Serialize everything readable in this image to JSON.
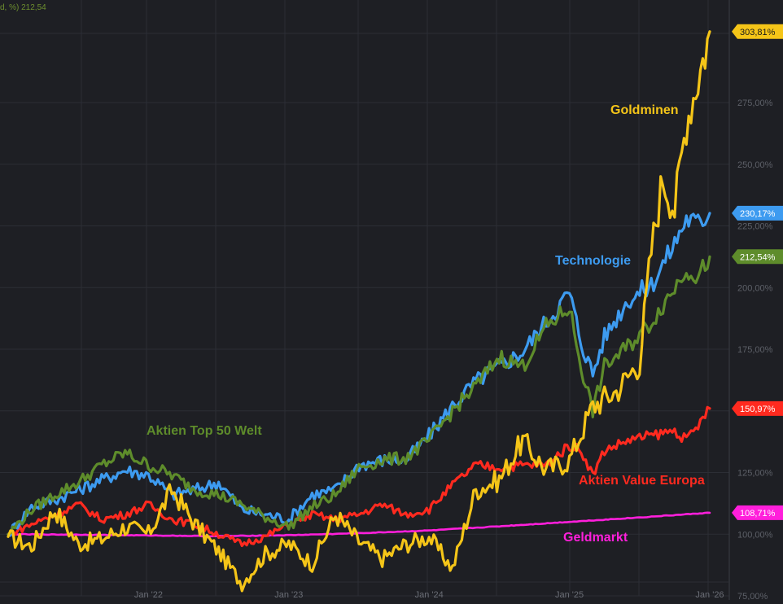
{
  "legend_snippet": "d, %)  212,54",
  "chart_data": {
    "type": "line",
    "x_ticks": [
      "Jan '22",
      "Jan '23",
      "Jan '24",
      "Jan '25",
      "Jan '26"
    ],
    "y_ticks": [
      "75,00%",
      "100,00%",
      "125,00%",
      "150,00%",
      "175,00%",
      "200,00%",
      "225,00%",
      "250,00%",
      "275,00%"
    ],
    "ylim": [
      75,
      310
    ],
    "xlim": [
      "2021-01",
      "2026-01"
    ],
    "grid": true,
    "series": [
      {
        "name": "Goldminen",
        "color": "#f5c518",
        "last_label": "303,81%",
        "points": [
          [
            "2021-01",
            99
          ],
          [
            "2021-03",
            95
          ],
          [
            "2021-05",
            110
          ],
          [
            "2021-07",
            96
          ],
          [
            "2021-09",
            98
          ],
          [
            "2021-11",
            103
          ],
          [
            "2022-01",
            100
          ],
          [
            "2022-03",
            118
          ],
          [
            "2022-05",
            104
          ],
          [
            "2022-07",
            93
          ],
          [
            "2022-09",
            80
          ],
          [
            "2022-11",
            92
          ],
          [
            "2023-01",
            96
          ],
          [
            "2023-03",
            88
          ],
          [
            "2023-05",
            108
          ],
          [
            "2023-07",
            97
          ],
          [
            "2023-09",
            90
          ],
          [
            "2023-11",
            96
          ],
          [
            "2024-01",
            99
          ],
          [
            "2024-03",
            86
          ],
          [
            "2024-05",
            118
          ],
          [
            "2024-07",
            122
          ],
          [
            "2024-09",
            138
          ],
          [
            "2024-11",
            126
          ],
          [
            "2025-01",
            130
          ],
          [
            "2025-03",
            152
          ],
          [
            "2025-05",
            158
          ],
          [
            "2025-07",
            170
          ],
          [
            "2025-08",
            215
          ],
          [
            "2025-09",
            245
          ],
          [
            "2025-10",
            232
          ],
          [
            "2025-11",
            268
          ],
          [
            "2025-12",
            285
          ],
          [
            "2026-01",
            303.81
          ]
        ]
      },
      {
        "name": "Technologie",
        "color": "#3d9bf0",
        "last_label": "230,17%",
        "points": [
          [
            "2021-01",
            100
          ],
          [
            "2021-03",
            111
          ],
          [
            "2021-05",
            114
          ],
          [
            "2021-07",
            118
          ],
          [
            "2021-09",
            122
          ],
          [
            "2021-11",
            126
          ],
          [
            "2022-01",
            124
          ],
          [
            "2022-03",
            116
          ],
          [
            "2022-05",
            118
          ],
          [
            "2022-07",
            121
          ],
          [
            "2022-09",
            110
          ],
          [
            "2022-11",
            108
          ],
          [
            "2023-01",
            106
          ],
          [
            "2023-03",
            116
          ],
          [
            "2023-05",
            118
          ],
          [
            "2023-07",
            128
          ],
          [
            "2023-09",
            130
          ],
          [
            "2023-11",
            130
          ],
          [
            "2024-01",
            140
          ],
          [
            "2024-03",
            152
          ],
          [
            "2024-05",
            162
          ],
          [
            "2024-07",
            168
          ],
          [
            "2024-09",
            174
          ],
          [
            "2024-11",
            186
          ],
          [
            "2025-01",
            198
          ],
          [
            "2025-02",
            178
          ],
          [
            "2025-03",
            165
          ],
          [
            "2025-04",
            180
          ],
          [
            "2025-06",
            195
          ],
          [
            "2025-08",
            201
          ],
          [
            "2025-10",
            218
          ],
          [
            "2025-11",
            228
          ],
          [
            "2025-12",
            226
          ],
          [
            "2026-01",
            230.17
          ]
        ]
      },
      {
        "name": "Aktien Top 50 Welt",
        "color": "#5e8c2b",
        "last_label": "212,54%",
        "points": [
          [
            "2021-01",
            100
          ],
          [
            "2021-03",
            110
          ],
          [
            "2021-05",
            116
          ],
          [
            "2021-07",
            121
          ],
          [
            "2021-09",
            128
          ],
          [
            "2021-11",
            133
          ],
          [
            "2022-01",
            128
          ],
          [
            "2022-03",
            124
          ],
          [
            "2022-05",
            118
          ],
          [
            "2022-07",
            116
          ],
          [
            "2022-09",
            112
          ],
          [
            "2022-11",
            107
          ],
          [
            "2023-01",
            103
          ],
          [
            "2023-03",
            111
          ],
          [
            "2023-05",
            116
          ],
          [
            "2023-07",
            127
          ],
          [
            "2023-09",
            130
          ],
          [
            "2023-11",
            131
          ],
          [
            "2024-01",
            138
          ],
          [
            "2024-03",
            150
          ],
          [
            "2024-05",
            160
          ],
          [
            "2024-07",
            172
          ],
          [
            "2024-09",
            168
          ],
          [
            "2024-11",
            184
          ],
          [
            "2025-01",
            192
          ],
          [
            "2025-02",
            168
          ],
          [
            "2025-03",
            150
          ],
          [
            "2025-04",
            168
          ],
          [
            "2025-06",
            176
          ],
          [
            "2025-08",
            186
          ],
          [
            "2025-10",
            200
          ],
          [
            "2025-11",
            208
          ],
          [
            "2025-12",
            204
          ],
          [
            "2026-01",
            212.54
          ]
        ]
      },
      {
        "name": "Aktien Value Europa",
        "color": "#ff2a1f",
        "last_label": "150,97%",
        "points": [
          [
            "2021-01",
            100
          ],
          [
            "2021-03",
            104
          ],
          [
            "2021-05",
            108
          ],
          [
            "2021-07",
            112
          ],
          [
            "2021-09",
            106
          ],
          [
            "2021-11",
            108
          ],
          [
            "2022-01",
            112
          ],
          [
            "2022-03",
            106
          ],
          [
            "2022-05",
            104
          ],
          [
            "2022-07",
            100
          ],
          [
            "2022-09",
            96
          ],
          [
            "2022-11",
            99
          ],
          [
            "2023-01",
            104
          ],
          [
            "2023-03",
            108
          ],
          [
            "2023-05",
            106
          ],
          [
            "2023-07",
            108
          ],
          [
            "2023-09",
            112
          ],
          [
            "2023-11",
            108
          ],
          [
            "2024-01",
            110
          ],
          [
            "2024-03",
            120
          ],
          [
            "2024-05",
            128
          ],
          [
            "2024-07",
            127
          ],
          [
            "2024-09",
            128
          ],
          [
            "2024-11",
            128
          ],
          [
            "2025-01",
            136
          ],
          [
            "2025-02",
            134
          ],
          [
            "2025-03",
            124
          ],
          [
            "2025-04",
            134
          ],
          [
            "2025-06",
            138
          ],
          [
            "2025-08",
            140
          ],
          [
            "2025-10",
            142
          ],
          [
            "2025-11",
            138
          ],
          [
            "2025-12",
            144
          ],
          [
            "2026-01",
            150.97
          ]
        ]
      },
      {
        "name": "Geldmarkt",
        "color": "#ff1fdb",
        "last_label": "108,71%",
        "points": [
          [
            "2021-01",
            100
          ],
          [
            "2021-07",
            99.8
          ],
          [
            "2022-01",
            99.5
          ],
          [
            "2022-07",
            99.2
          ],
          [
            "2023-01",
            99.6
          ],
          [
            "2023-07",
            100.4
          ],
          [
            "2024-01",
            101.5
          ],
          [
            "2024-07",
            103.2
          ],
          [
            "2025-01",
            105
          ],
          [
            "2025-07",
            106.8
          ],
          [
            "2026-01",
            108.71
          ]
        ]
      }
    ],
    "annotations": [
      {
        "text": "Goldminen",
        "color": "#f5c518"
      },
      {
        "text": "Technologie",
        "color": "#3d9bf0"
      },
      {
        "text": "Aktien Top 50 Welt",
        "color": "#5e8c2b"
      },
      {
        "text": "Aktien Value Europa",
        "color": "#ff2a1f"
      },
      {
        "text": "Geldmarkt",
        "color": "#ff1fdb"
      }
    ]
  }
}
